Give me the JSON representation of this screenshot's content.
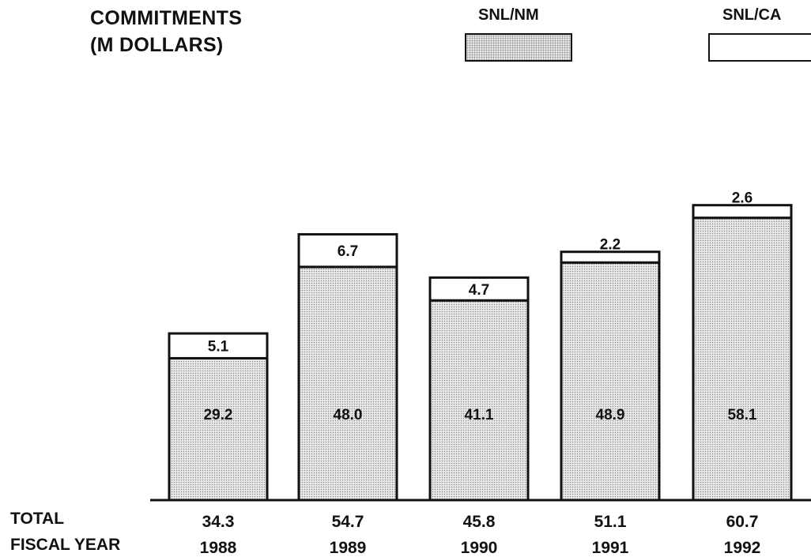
{
  "title_line1": "COMMITMENTS",
  "title_line2": "(M DOLLARS)",
  "legend": [
    {
      "label": "SNL/NM",
      "pattern": "dotted"
    },
    {
      "label": "SNL/CA",
      "pattern": "blank"
    }
  ],
  "row_labels": {
    "total": "TOTAL",
    "fiscal_year": "FISCAL YEAR"
  },
  "chart_data": {
    "type": "bar",
    "stacked": true,
    "categories": [
      "1988",
      "1989",
      "1990",
      "1991",
      "1992"
    ],
    "series": [
      {
        "name": "SNL/NM",
        "values": [
          29.2,
          48.0,
          41.1,
          48.9,
          58.1
        ],
        "labels": [
          "29.2",
          "48.0",
          "41.1",
          "48.9",
          "58.1"
        ]
      },
      {
        "name": "SNL/CA",
        "values": [
          5.1,
          6.7,
          4.7,
          2.2,
          2.6
        ],
        "labels": [
          "5.1",
          "6.7",
          "4.7",
          "2.2",
          "2.6"
        ]
      }
    ],
    "totals": [
      "34.3",
      "54.7",
      "45.8",
      "51.1",
      "60.7"
    ],
    "grid": false
  }
}
